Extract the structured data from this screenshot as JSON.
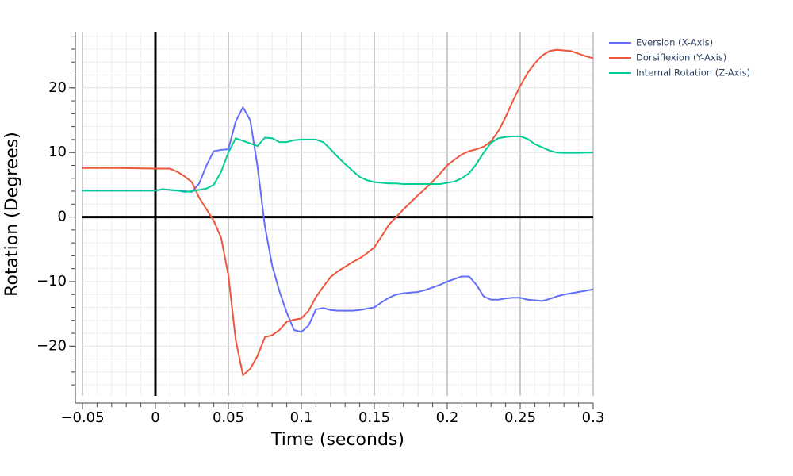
{
  "chart_data": {
    "type": "line",
    "x_label": "Time (seconds)",
    "y_label": "Rotation (Degrees)",
    "x": [
      -0.05,
      -0.025,
      0,
      0.005,
      0.01,
      0.015,
      0.02,
      0.025,
      0.03,
      0.035,
      0.04,
      0.045,
      0.05,
      0.055,
      0.06,
      0.065,
      0.07,
      0.075,
      0.08,
      0.085,
      0.09,
      0.095,
      0.1,
      0.105,
      0.11,
      0.115,
      0.12,
      0.125,
      0.13,
      0.135,
      0.14,
      0.145,
      0.15,
      0.155,
      0.16,
      0.165,
      0.17,
      0.175,
      0.18,
      0.185,
      0.19,
      0.195,
      0.2,
      0.205,
      0.21,
      0.215,
      0.22,
      0.225,
      0.23,
      0.235,
      0.24,
      0.245,
      0.25,
      0.255,
      0.26,
      0.265,
      0.27,
      0.275,
      0.28,
      0.285,
      0.29,
      0.295,
      0.3
    ],
    "series": [
      {
        "name": "Eversion (X-Axis)",
        "color": "#636efa",
        "values": [
          4.1,
          4.1,
          4.1,
          4.3,
          4.2,
          4.1,
          4.0,
          3.9,
          5.2,
          8,
          10.2,
          10.4,
          10.5,
          14.8,
          17,
          15,
          7.8,
          -1.4,
          -7.5,
          -11.5,
          -14.8,
          -17.5,
          -17.8,
          -16.8,
          -14.3,
          -14.1,
          -14.4,
          -14.5,
          -14.5,
          -14.5,
          -14.4,
          -14.2,
          -14,
          -13.2,
          -12.5,
          -12,
          -11.8,
          -11.7,
          -11.6,
          -11.3,
          -10.9,
          -10.5,
          -10,
          -9.6,
          -9.2,
          -9.2,
          -10.5,
          -12.3,
          -12.8,
          -12.8,
          -12.6,
          -12.5,
          -12.5,
          -12.8,
          -12.9,
          -13,
          -12.7,
          -12.3,
          -12,
          -11.8,
          -11.6,
          -11.4,
          -11.2
        ]
      },
      {
        "name": "Dorsiflexion (Y-Axis)",
        "color": "#ef553b",
        "values": [
          7.6,
          7.6,
          7.5,
          7.5,
          7.5,
          7.0,
          6.3,
          5.4,
          3.0,
          1.2,
          -0.6,
          -3.2,
          -9,
          -19,
          -24.5,
          -23.5,
          -21.5,
          -18.6,
          -18.3,
          -17.5,
          -16.2,
          -15.9,
          -15.7,
          -14.5,
          -12.4,
          -10.8,
          -9.3,
          -8.4,
          -7.7,
          -7,
          -6.4,
          -5.6,
          -4.7,
          -3,
          -1.2,
          0,
          1.2,
          2.3,
          3.4,
          4.4,
          5.5,
          6.7,
          8,
          8.9,
          9.7,
          10.2,
          10.5,
          10.9,
          11.7,
          13.3,
          15.5,
          18,
          20.3,
          22.3,
          23.8,
          25,
          25.7,
          25.9,
          25.8,
          25.7,
          25.3,
          24.9,
          24.6
        ]
      },
      {
        "name": "Internal Rotation (Z-Axis)",
        "color": "#00cc96",
        "values": [
          4.1,
          4.1,
          4.1,
          4.3,
          4.2,
          4.1,
          3.9,
          4.0,
          4.2,
          4.4,
          5,
          7,
          10,
          12.2,
          11.8,
          11.4,
          11,
          12.3,
          12.2,
          11.6,
          11.6,
          11.9,
          12,
          12,
          12,
          11.6,
          10.5,
          9.3,
          8.2,
          7.2,
          6.2,
          5.7,
          5.4,
          5.3,
          5.2,
          5.2,
          5.1,
          5.1,
          5.1,
          5.1,
          5.1,
          5.1,
          5.3,
          5.5,
          6,
          6.8,
          8.2,
          10,
          11.5,
          12.2,
          12.4,
          12.5,
          12.5,
          12.1,
          11.3,
          10.8,
          10.3,
          10,
          9.95,
          9.95,
          9.95,
          10,
          10
        ]
      }
    ],
    "xlim": [
      -0.05,
      0.3
    ],
    "ylim": [
      -27.7,
      28.7
    ],
    "xticks": [
      {
        "value": -0.05,
        "label": "−0.05"
      },
      0,
      0.05,
      0.1,
      0.15,
      0.2,
      0.25,
      0.3
    ],
    "yticks": [
      {
        "value": -20,
        "label": "−20"
      },
      {
        "value": -10,
        "label": "−10"
      },
      0,
      10,
      20
    ],
    "x_minor_step": 0.01,
    "y_minor_step": 2,
    "grid": true,
    "zero_lines": true,
    "legend": "top-right"
  }
}
